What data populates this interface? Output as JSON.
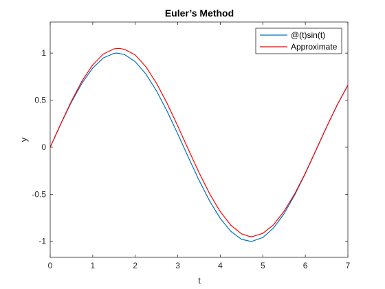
{
  "chart_data": {
    "type": "line",
    "title": "Euler’s Method",
    "xlabel": "t",
    "ylabel": "y",
    "xlim": [
      0,
      7
    ],
    "ylim": [
      -1.17,
      1.33
    ],
    "xticks": [
      0,
      1,
      2,
      3,
      4,
      5,
      6,
      7
    ],
    "yticks": [
      -1,
      -0.5,
      0,
      0.5,
      1
    ],
    "xtick_labels": [
      "0",
      "1",
      "2",
      "3",
      "4",
      "5",
      "6",
      "7"
    ],
    "ytick_labels": [
      "-1",
      "-0.5",
      "0",
      "0.5",
      "1"
    ],
    "grid": false,
    "legend_position": "top-right",
    "series": [
      {
        "name": "@(t)sin(t)",
        "color": "#0072BD",
        "x": [
          0,
          0.25,
          0.5,
          0.75,
          1,
          1.25,
          1.5,
          1.5708,
          1.75,
          2,
          2.25,
          2.5,
          2.75,
          3,
          3.25,
          3.5,
          3.75,
          4,
          4.25,
          4.5,
          4.7124,
          4.75,
          5,
          5.25,
          5.5,
          5.75,
          6,
          6.25,
          6.5,
          6.75,
          7
        ],
        "y": [
          0,
          0.247,
          0.479,
          0.682,
          0.841,
          0.949,
          0.997,
          1.0,
          0.984,
          0.909,
          0.778,
          0.598,
          0.382,
          0.141,
          -0.108,
          -0.351,
          -0.572,
          -0.757,
          -0.895,
          -0.978,
          -1.0,
          -0.999,
          -0.959,
          -0.859,
          -0.706,
          -0.508,
          -0.279,
          -0.033,
          0.215,
          0.451,
          0.657
        ]
      },
      {
        "name": "Approximate",
        "color": "#FF0000",
        "x": [
          0,
          0.25,
          0.5,
          0.75,
          1,
          1.25,
          1.5,
          1.62,
          1.75,
          2,
          2.25,
          2.5,
          2.75,
          3,
          3.25,
          3.5,
          3.75,
          4,
          4.25,
          4.5,
          4.7,
          4.75,
          5,
          5.25,
          5.5,
          5.75,
          6,
          6.25,
          6.5,
          6.75,
          7
        ],
        "y": [
          0,
          0.25,
          0.49,
          0.705,
          0.875,
          0.99,
          1.045,
          1.05,
          1.04,
          0.98,
          0.855,
          0.68,
          0.465,
          0.225,
          -0.025,
          -0.27,
          -0.495,
          -0.685,
          -0.83,
          -0.92,
          -0.95,
          -0.95,
          -0.915,
          -0.825,
          -0.68,
          -0.495,
          -0.275,
          -0.03,
          0.215,
          0.45,
          0.66
        ]
      }
    ]
  }
}
